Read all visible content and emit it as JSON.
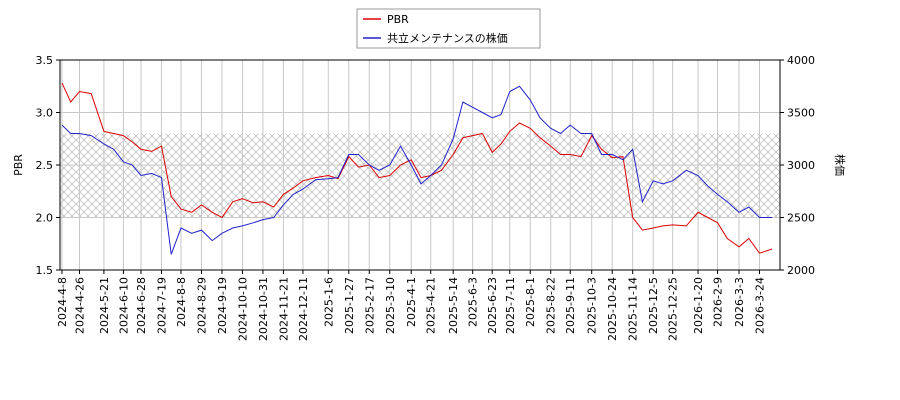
{
  "chart_data": {
    "type": "line",
    "legend": "upper center",
    "grid": true,
    "ylabel": "PBR",
    "y2label": "株価",
    "xlim": [
      "2024-4-6",
      "2026-4-14"
    ],
    "ylim": [
      1.5,
      3.5
    ],
    "yticks": [
      1.5,
      {
        "value": 2,
        "label": "2.0"
      },
      2.5,
      {
        "value": 3,
        "label": "3.0"
      },
      3.5
    ],
    "y2lim": [
      2000,
      4000
    ],
    "y2ticks": [
      2000,
      2500,
      3000,
      3500,
      4000
    ],
    "hatch_band": [
      2,
      2.8
    ],
    "xticks": [
      "2024-4-8",
      "2024-4-26",
      "2024-5-21",
      "2024-6-10",
      "2024-6-28",
      "2024-7-19",
      "2024-8-8",
      "2024-8-29",
      "2024-9-19",
      "2024-10-10",
      "2024-10-31",
      "2024-11-21",
      "2024-12-11",
      "2025-1-6",
      "2025-1-27",
      "2025-2-17",
      "2025-3-10",
      "2025-4-1",
      "2025-4-21",
      "2025-5-14",
      "2025-6-3",
      "2025-6-23",
      "2025-7-11",
      "2025-8-1",
      "2025-8-22",
      "2025-9-11",
      "2025-10-3",
      "2025-10-24",
      "2025-11-14",
      "2025-12-5",
      "2025-12-25",
      "2026-1-20",
      "2026-2-9",
      "2026-3-3",
      "2026-3-24"
    ],
    "x": [
      "2024-4-8",
      "2024-4-17",
      "2024-4-26",
      "2024-5-8",
      "2024-5-21",
      "2024-5-31",
      "2024-6-10",
      "2024-6-19",
      "2024-6-28",
      "2024-7-9",
      "2024-7-19",
      "2024-7-29",
      "2024-8-8",
      "2024-8-19",
      "2024-8-29",
      "2024-9-9",
      "2024-9-19",
      "2024-9-30",
      "2024-10-10",
      "2024-10-21",
      "2024-10-31",
      "2024-11-11",
      "2024-11-21",
      "2024-12-1",
      "2024-12-11",
      "2024-12-24",
      "2025-1-6",
      "2025-1-16",
      "2025-1-27",
      "2025-2-6",
      "2025-2-17",
      "2025-2-27",
      "2025-3-10",
      "2025-3-21",
      "2025-4-1",
      "2025-4-11",
      "2025-4-21",
      "2025-5-2",
      "2025-5-14",
      "2025-5-24",
      "2025-6-3",
      "2025-6-13",
      "2025-6-23",
      "2025-7-2",
      "2025-7-11",
      "2025-7-21",
      "2025-8-1",
      "2025-8-11",
      "2025-8-22",
      "2025-9-1",
      "2025-9-11",
      "2025-9-22",
      "2025-10-3",
      "2025-10-13",
      "2025-10-24",
      "2025-11-4",
      "2025-11-14",
      "2025-11-24",
      "2025-12-5",
      "2025-12-15",
      "2025-12-25",
      "2026-1-8",
      "2026-1-20",
      "2026-1-30",
      "2026-2-9",
      "2026-2-19",
      "2026-3-3",
      "2026-3-13",
      "2026-3-24",
      "2026-4-6"
    ],
    "series": [
      {
        "name": "PBR",
        "color": "#dd0000",
        "values": [
          3.28,
          3.1,
          3.2,
          3.18,
          2.82,
          2.8,
          2.78,
          2.72,
          2.65,
          2.63,
          2.68,
          2.2,
          2.08,
          2.05,
          2.12,
          2.05,
          2.0,
          2.15,
          2.18,
          2.14,
          2.15,
          2.1,
          2.22,
          2.28,
          2.35,
          2.38,
          2.4,
          2.37,
          2.58,
          2.48,
          2.5,
          2.38,
          2.4,
          2.5,
          2.55,
          2.38,
          2.4,
          2.45,
          2.6,
          2.76,
          2.78,
          2.8,
          2.62,
          2.7,
          2.82,
          2.9,
          2.85,
          2.76,
          2.68,
          2.6,
          2.6,
          2.58,
          2.78,
          2.65,
          2.57,
          2.58,
          2.0,
          1.88,
          1.9,
          1.92,
          1.93,
          1.92,
          2.05,
          2.0,
          1.95,
          1.8,
          1.72,
          1.8,
          1.66,
          1.7
        ]
      },
      {
        "name": "共立メンテナンスの株価",
        "color": "#2222cc",
        "axis": "y2",
        "values": [
          3380,
          3300,
          3300,
          3280,
          3200,
          3150,
          3030,
          3000,
          2900,
          2920,
          2880,
          2150,
          2400,
          2350,
          2380,
          2280,
          2350,
          2400,
          2420,
          2450,
          2480,
          2500,
          2620,
          2720,
          2770,
          2860,
          2870,
          2880,
          3100,
          3100,
          3000,
          2950,
          3000,
          3180,
          3000,
          2820,
          2900,
          3000,
          3250,
          3600,
          3550,
          3500,
          3450,
          3480,
          3700,
          3750,
          3620,
          3450,
          3350,
          3300,
          3380,
          3300,
          3300,
          3100,
          3100,
          3050,
          3150,
          2650,
          2850,
          2820,
          2850,
          2950,
          2900,
          2800,
          2720,
          2650,
          2550,
          2600,
          2500,
          2500
        ]
      }
    ]
  }
}
